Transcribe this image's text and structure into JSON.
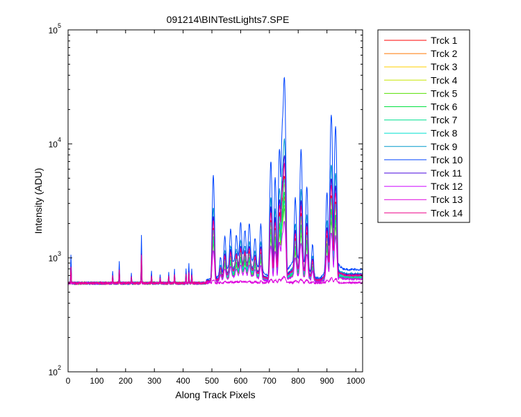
{
  "chart_data": {
    "type": "line",
    "title": "091214\\BINTestLights7.SPE",
    "xlabel": "Along Track Pixels",
    "ylabel": "Intensity (ADU)",
    "xlim": [
      0,
      1024
    ],
    "ylim": [
      100,
      100000
    ],
    "yscale": "log",
    "grid": false,
    "legend_position": "outside-top-right",
    "x_ticks": [
      "0",
      "100",
      "200",
      "300",
      "400",
      "500",
      "600",
      "700",
      "800",
      "900",
      "1000"
    ],
    "y_ticks": [
      {
        "base": "10",
        "exp": "2",
        "value": 100
      },
      {
        "base": "10",
        "exp": "3",
        "value": 1000
      },
      {
        "base": "10",
        "exp": "4",
        "value": 10000
      },
      {
        "base": "10",
        "exp": "5",
        "value": 100000
      }
    ],
    "peaks": [
      {
        "x": 10,
        "y": 1050
      },
      {
        "x": 155,
        "y": 770
      },
      {
        "x": 178,
        "y": 950
      },
      {
        "x": 220,
        "y": 740
      },
      {
        "x": 255,
        "y": 1600
      },
      {
        "x": 290,
        "y": 760
      },
      {
        "x": 320,
        "y": 720
      },
      {
        "x": 350,
        "y": 760
      },
      {
        "x": 370,
        "y": 800
      },
      {
        "x": 410,
        "y": 800
      },
      {
        "x": 420,
        "y": 900
      },
      {
        "x": 430,
        "y": 800
      },
      {
        "x": 505,
        "y": 5200
      },
      {
        "x": 530,
        "y": 900
      },
      {
        "x": 545,
        "y": 1400
      },
      {
        "x": 565,
        "y": 1500
      },
      {
        "x": 585,
        "y": 1200
      },
      {
        "x": 600,
        "y": 1600
      },
      {
        "x": 615,
        "y": 1300
      },
      {
        "x": 630,
        "y": 1600
      },
      {
        "x": 650,
        "y": 1200
      },
      {
        "x": 670,
        "y": 1800
      },
      {
        "x": 705,
        "y": 7000
      },
      {
        "x": 720,
        "y": 5000
      },
      {
        "x": 735,
        "y": 9000
      },
      {
        "x": 745,
        "y": 14000
      },
      {
        "x": 752,
        "y": 38000
      },
      {
        "x": 790,
        "y": 3000
      },
      {
        "x": 810,
        "y": 8500
      },
      {
        "x": 830,
        "y": 4000
      },
      {
        "x": 850,
        "y": 1200
      },
      {
        "x": 900,
        "y": 3500
      },
      {
        "x": 915,
        "y": 18000
      },
      {
        "x": 930,
        "y": 14000
      }
    ],
    "series": [
      {
        "name": "Trck 1",
        "color": "#ff0000",
        "level": 0.52
      },
      {
        "name": "Trck 2",
        "color": "#ff7700",
        "level": 0.42
      },
      {
        "name": "Trck 3",
        "color": "#ffd000",
        "level": 0.48
      },
      {
        "name": "Trck 4",
        "color": "#c8e600",
        "level": 0.38
      },
      {
        "name": "Trck 5",
        "color": "#55e000",
        "level": 0.36
      },
      {
        "name": "Trck 6",
        "color": "#00e040",
        "level": 0.44
      },
      {
        "name": "Trck 7",
        "color": "#00e090",
        "level": 0.4
      },
      {
        "name": "Trck 8",
        "color": "#00e0d0",
        "level": 0.5
      },
      {
        "name": "Trck 9",
        "color": "#0099cc",
        "level": 0.7
      },
      {
        "name": "Trck 10",
        "color": "#0044ff",
        "level": 1.0
      },
      {
        "name": "Trck 11",
        "color": "#4400dd",
        "level": 0.62
      },
      {
        "name": "Trck 12",
        "color": "#cc00ff",
        "level": 0.3
      },
      {
        "name": "Trck 13",
        "color": "#dd00dd",
        "level": 0.03
      },
      {
        "name": "Trck 14",
        "color": "#ee0088",
        "level": 0.58
      }
    ]
  }
}
